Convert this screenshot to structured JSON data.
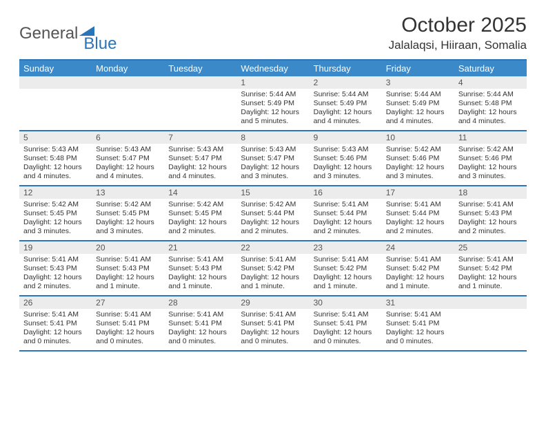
{
  "logo": {
    "text1": "General",
    "text2": "Blue"
  },
  "title": "October 2025",
  "subtitle": "Jalalaqsi, Hiiraan, Somalia",
  "colors": {
    "header_bg": "#3b89c9",
    "header_border": "#2a74b8",
    "daynum_bg": "#ececec",
    "text": "#333333",
    "logo_gray": "#555555",
    "logo_blue": "#2a74b8"
  },
  "daynames": [
    "Sunday",
    "Monday",
    "Tuesday",
    "Wednesday",
    "Thursday",
    "Friday",
    "Saturday"
  ],
  "weeks": [
    [
      {
        "n": "",
        "sr": "",
        "ss": "",
        "dl": ""
      },
      {
        "n": "",
        "sr": "",
        "ss": "",
        "dl": ""
      },
      {
        "n": "",
        "sr": "",
        "ss": "",
        "dl": ""
      },
      {
        "n": "1",
        "sr": "5:44 AM",
        "ss": "5:49 PM",
        "dl": "12 hours and 5 minutes."
      },
      {
        "n": "2",
        "sr": "5:44 AM",
        "ss": "5:49 PM",
        "dl": "12 hours and 4 minutes."
      },
      {
        "n": "3",
        "sr": "5:44 AM",
        "ss": "5:49 PM",
        "dl": "12 hours and 4 minutes."
      },
      {
        "n": "4",
        "sr": "5:44 AM",
        "ss": "5:48 PM",
        "dl": "12 hours and 4 minutes."
      }
    ],
    [
      {
        "n": "5",
        "sr": "5:43 AM",
        "ss": "5:48 PM",
        "dl": "12 hours and 4 minutes."
      },
      {
        "n": "6",
        "sr": "5:43 AM",
        "ss": "5:47 PM",
        "dl": "12 hours and 4 minutes."
      },
      {
        "n": "7",
        "sr": "5:43 AM",
        "ss": "5:47 PM",
        "dl": "12 hours and 4 minutes."
      },
      {
        "n": "8",
        "sr": "5:43 AM",
        "ss": "5:47 PM",
        "dl": "12 hours and 3 minutes."
      },
      {
        "n": "9",
        "sr": "5:43 AM",
        "ss": "5:46 PM",
        "dl": "12 hours and 3 minutes."
      },
      {
        "n": "10",
        "sr": "5:42 AM",
        "ss": "5:46 PM",
        "dl": "12 hours and 3 minutes."
      },
      {
        "n": "11",
        "sr": "5:42 AM",
        "ss": "5:46 PM",
        "dl": "12 hours and 3 minutes."
      }
    ],
    [
      {
        "n": "12",
        "sr": "5:42 AM",
        "ss": "5:45 PM",
        "dl": "12 hours and 3 minutes."
      },
      {
        "n": "13",
        "sr": "5:42 AM",
        "ss": "5:45 PM",
        "dl": "12 hours and 3 minutes."
      },
      {
        "n": "14",
        "sr": "5:42 AM",
        "ss": "5:45 PM",
        "dl": "12 hours and 2 minutes."
      },
      {
        "n": "15",
        "sr": "5:42 AM",
        "ss": "5:44 PM",
        "dl": "12 hours and 2 minutes."
      },
      {
        "n": "16",
        "sr": "5:41 AM",
        "ss": "5:44 PM",
        "dl": "12 hours and 2 minutes."
      },
      {
        "n": "17",
        "sr": "5:41 AM",
        "ss": "5:44 PM",
        "dl": "12 hours and 2 minutes."
      },
      {
        "n": "18",
        "sr": "5:41 AM",
        "ss": "5:43 PM",
        "dl": "12 hours and 2 minutes."
      }
    ],
    [
      {
        "n": "19",
        "sr": "5:41 AM",
        "ss": "5:43 PM",
        "dl": "12 hours and 2 minutes."
      },
      {
        "n": "20",
        "sr": "5:41 AM",
        "ss": "5:43 PM",
        "dl": "12 hours and 1 minute."
      },
      {
        "n": "21",
        "sr": "5:41 AM",
        "ss": "5:43 PM",
        "dl": "12 hours and 1 minute."
      },
      {
        "n": "22",
        "sr": "5:41 AM",
        "ss": "5:42 PM",
        "dl": "12 hours and 1 minute."
      },
      {
        "n": "23",
        "sr": "5:41 AM",
        "ss": "5:42 PM",
        "dl": "12 hours and 1 minute."
      },
      {
        "n": "24",
        "sr": "5:41 AM",
        "ss": "5:42 PM",
        "dl": "12 hours and 1 minute."
      },
      {
        "n": "25",
        "sr": "5:41 AM",
        "ss": "5:42 PM",
        "dl": "12 hours and 1 minute."
      }
    ],
    [
      {
        "n": "26",
        "sr": "5:41 AM",
        "ss": "5:41 PM",
        "dl": "12 hours and 0 minutes."
      },
      {
        "n": "27",
        "sr": "5:41 AM",
        "ss": "5:41 PM",
        "dl": "12 hours and 0 minutes."
      },
      {
        "n": "28",
        "sr": "5:41 AM",
        "ss": "5:41 PM",
        "dl": "12 hours and 0 minutes."
      },
      {
        "n": "29",
        "sr": "5:41 AM",
        "ss": "5:41 PM",
        "dl": "12 hours and 0 minutes."
      },
      {
        "n": "30",
        "sr": "5:41 AM",
        "ss": "5:41 PM",
        "dl": "12 hours and 0 minutes."
      },
      {
        "n": "31",
        "sr": "5:41 AM",
        "ss": "5:41 PM",
        "dl": "12 hours and 0 minutes."
      },
      {
        "n": "",
        "sr": "",
        "ss": "",
        "dl": ""
      }
    ]
  ],
  "labels": {
    "sunrise": "Sunrise: ",
    "sunset": "Sunset: ",
    "daylight": "Daylight: "
  }
}
